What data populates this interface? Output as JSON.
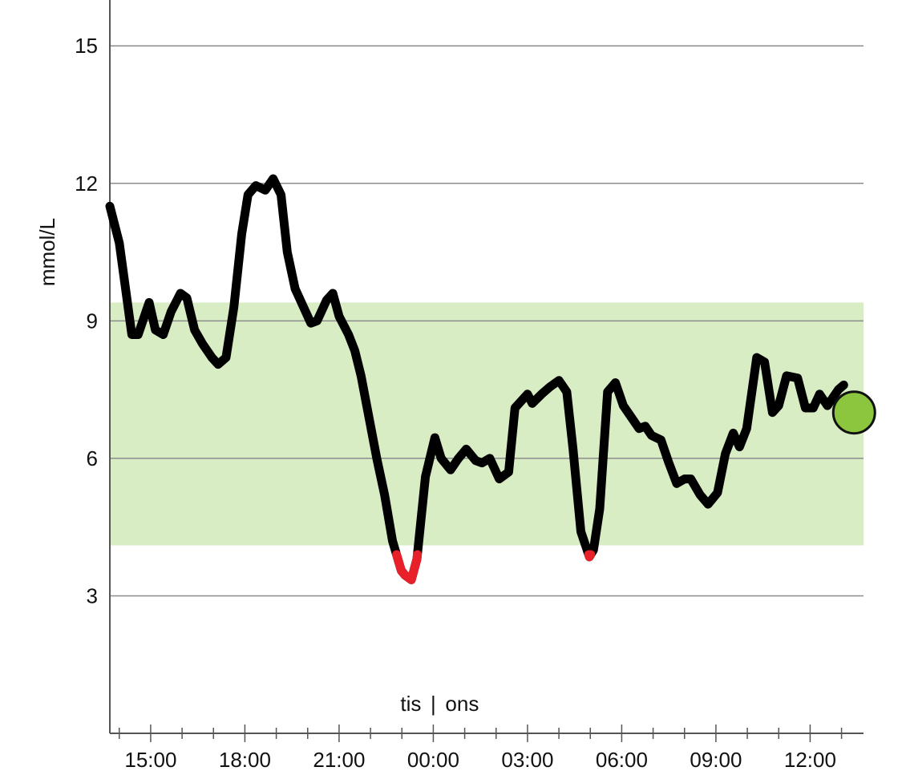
{
  "chart_data": {
    "type": "line",
    "ylabel": "mmol/L",
    "ylim": [
      0,
      16
    ],
    "xlim": [
      13.7,
      37.7
    ],
    "y_ticks": [
      3,
      6,
      9,
      12,
      15
    ],
    "y_tick_labels": [
      "3",
      "6",
      "9",
      "12",
      "15"
    ],
    "x_ticks": [
      15,
      18,
      21,
      24,
      27,
      30,
      33,
      36
    ],
    "x_tick_labels": [
      "15:00",
      "18:00",
      "21:00",
      "00:00",
      "03:00",
      "06:00",
      "09:00",
      "12:00"
    ],
    "day_divider": {
      "x": 24,
      "left_label": "tis",
      "separator": "|",
      "right_label": "ons"
    },
    "target_range": [
      4.1,
      9.4
    ],
    "low_threshold": 3.9,
    "grid": true,
    "colors": {
      "line": "#000000",
      "low_line": "#e8202a",
      "target_band": "#d8edc4",
      "current_marker": "#8cc63f",
      "grid": "#8c8c8c"
    },
    "current_value": {
      "x": 37.4,
      "y": 7.0
    },
    "series": [
      {
        "x": [
          13.7,
          13.85,
          14.0,
          14.2,
          14.4,
          14.6,
          14.95,
          15.15,
          15.4,
          15.65,
          15.95,
          16.15,
          16.4,
          16.65,
          16.95,
          17.15,
          17.4,
          17.65,
          17.9,
          18.1,
          18.35,
          18.65,
          18.9,
          19.15,
          19.35,
          19.6,
          19.8,
          20.1,
          20.3,
          20.6,
          20.8,
          21.0,
          21.3,
          21.5,
          21.7,
          21.95,
          22.2,
          22.45,
          22.7,
          22.98,
          23.1,
          23.3,
          23.48,
          23.75,
          24.05,
          24.25,
          24.55,
          24.8,
          25.05,
          25.35,
          25.55,
          25.8,
          26.1,
          26.4,
          26.6,
          27.0,
          27.15,
          27.45,
          27.7,
          28.0,
          28.25,
          28.45,
          28.7,
          28.97,
          29.1,
          29.3,
          29.55,
          29.8,
          30.05,
          30.3,
          30.55,
          30.75,
          30.95,
          31.25,
          31.5,
          31.75,
          32.0,
          32.2,
          32.5,
          32.75,
          33.05,
          33.3,
          33.55,
          33.75,
          33.98,
          34.3,
          34.55,
          34.8,
          35.0,
          35.25,
          35.6,
          35.85,
          36.1,
          36.3,
          36.55,
          36.9,
          37.07
        ],
        "y": [
          11.5,
          11.1,
          10.7,
          9.7,
          8.7,
          8.7,
          9.4,
          8.8,
          8.7,
          9.2,
          9.6,
          9.5,
          8.8,
          8.5,
          8.2,
          8.05,
          8.2,
          9.3,
          10.9,
          11.75,
          11.95,
          11.85,
          12.1,
          11.75,
          10.5,
          9.7,
          9.4,
          8.95,
          9.0,
          9.45,
          9.6,
          9.1,
          8.7,
          8.35,
          7.8,
          6.9,
          6.0,
          5.2,
          4.2,
          3.55,
          3.45,
          3.35,
          3.8,
          5.6,
          6.45,
          6.0,
          5.75,
          6.0,
          6.2,
          5.95,
          5.9,
          6.0,
          5.55,
          5.7,
          7.1,
          7.4,
          7.2,
          7.4,
          7.55,
          7.7,
          7.45,
          6.2,
          4.4,
          3.85,
          4.0,
          4.9,
          7.45,
          7.65,
          7.15,
          6.9,
          6.65,
          6.7,
          6.5,
          6.4,
          5.9,
          5.45,
          5.55,
          5.55,
          5.2,
          5.0,
          5.25,
          6.1,
          6.55,
          6.25,
          6.65,
          8.2,
          8.1,
          7.0,
          7.15,
          7.8,
          7.75,
          7.1,
          7.1,
          7.4,
          7.15,
          7.5,
          7.6
        ]
      }
    ]
  }
}
